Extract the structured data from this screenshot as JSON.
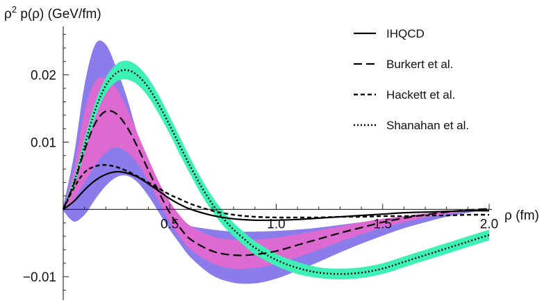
{
  "chart_data": {
    "type": "line",
    "ylabel_main": "ρ",
    "ylabel_sup": "2",
    "ylabel_rest": " p(ρ) (GeV/fm)",
    "xlabel": "ρ (fm)",
    "xlim": [
      0,
      2.0
    ],
    "ylim": [
      -0.0135,
      0.0272
    ],
    "xticks": [
      {
        "value": 0.5,
        "label": "0.5"
      },
      {
        "value": 1.0,
        "label": "1.0"
      },
      {
        "value": 1.5,
        "label": "1.5"
      },
      {
        "value": 2.0,
        "label": "2.0"
      }
    ],
    "yticks": [
      {
        "value": -0.01,
        "label": "−0.01"
      },
      {
        "value": 0.01,
        "label": "0.01"
      },
      {
        "value": 0.02,
        "label": "0.02"
      }
    ],
    "grid": false,
    "legend_position": "top-right",
    "series": [
      {
        "name": "IHQCD",
        "dash": "solid",
        "color": "#000000",
        "x": [
          0.0,
          0.05,
          0.1,
          0.15,
          0.2,
          0.25,
          0.3,
          0.35,
          0.4,
          0.45,
          0.5,
          0.55,
          0.6,
          0.7,
          0.8,
          0.9,
          1.0,
          1.1,
          1.2,
          1.3,
          1.4,
          1.5,
          1.6,
          1.7,
          1.8,
          1.9,
          2.0
        ],
        "y": [
          0.0,
          0.0012,
          0.0029,
          0.0043,
          0.0052,
          0.0056,
          0.0054,
          0.0048,
          0.0038,
          0.0027,
          0.0016,
          0.0007,
          0.0,
          -0.0009,
          -0.0014,
          -0.0016,
          -0.0016,
          -0.0015,
          -0.0013,
          -0.0011,
          -0.0009,
          -0.0007,
          -0.0005,
          -0.0004,
          -0.0003,
          -0.0002,
          -0.0002
        ]
      },
      {
        "name": "Burkert et al.",
        "dash": "long-dash",
        "color": "#000000",
        "x": [
          0.0,
          0.05,
          0.1,
          0.15,
          0.2,
          0.25,
          0.3,
          0.35,
          0.4,
          0.45,
          0.5,
          0.55,
          0.6,
          0.7,
          0.8,
          0.9,
          1.0,
          1.1,
          1.2,
          1.3,
          1.4,
          1.5,
          1.6,
          1.7,
          1.8,
          1.9,
          2.0
        ],
        "y": [
          0.0,
          0.0038,
          0.0088,
          0.0128,
          0.0146,
          0.0142,
          0.0122,
          0.0092,
          0.0058,
          0.0025,
          -0.0005,
          -0.0028,
          -0.0045,
          -0.0062,
          -0.0068,
          -0.0067,
          -0.0062,
          -0.0053,
          -0.0044,
          -0.0035,
          -0.0027,
          -0.0019,
          -0.0013,
          -0.0008,
          -0.0004,
          -0.0001,
          0.0001
        ]
      },
      {
        "name": "Hackett et al.",
        "dash": "short-dash",
        "color": "#000000",
        "x": [
          0.0,
          0.05,
          0.1,
          0.15,
          0.2,
          0.25,
          0.3,
          0.35,
          0.4,
          0.45,
          0.5,
          0.55,
          0.6,
          0.7,
          0.8,
          0.9,
          1.0,
          1.1,
          1.2,
          1.3,
          1.4,
          1.5,
          1.6,
          1.7,
          1.8,
          1.9,
          2.0
        ],
        "y": [
          0.0,
          0.0032,
          0.0055,
          0.0064,
          0.0066,
          0.0063,
          0.0057,
          0.0049,
          0.004,
          0.0031,
          0.0022,
          0.0015,
          0.0008,
          -0.0002,
          -0.0008,
          -0.0011,
          -0.0012,
          -0.0012,
          -0.0012,
          -0.0011,
          -0.0011,
          -0.001,
          -0.001,
          -0.0009,
          -0.0009,
          -0.0008,
          -0.0008
        ]
      },
      {
        "name": "Shanahan et al.",
        "dash": "dotted",
        "color": "#000000",
        "x": [
          0.0,
          0.05,
          0.1,
          0.15,
          0.2,
          0.25,
          0.3,
          0.35,
          0.4,
          0.45,
          0.5,
          0.55,
          0.6,
          0.65,
          0.7,
          0.75,
          0.8,
          0.85,
          0.9,
          1.0,
          1.1,
          1.2,
          1.3,
          1.4,
          1.5,
          1.6,
          1.7,
          1.8,
          1.9,
          2.0
        ],
        "y": [
          0.0,
          0.004,
          0.0095,
          0.0148,
          0.0184,
          0.0203,
          0.0207,
          0.0199,
          0.0181,
          0.0155,
          0.0125,
          0.0093,
          0.0062,
          0.0033,
          0.0008,
          -0.0013,
          -0.003,
          -0.0044,
          -0.0057,
          -0.0075,
          -0.0087,
          -0.0094,
          -0.0096,
          -0.0094,
          -0.0088,
          -0.0078,
          -0.0068,
          -0.0058,
          -0.0048,
          -0.0038
        ]
      }
    ],
    "bands": [
      {
        "name": "Burkert et al. outer band",
        "color": "#8a7ceb",
        "x": [
          0.0,
          0.05,
          0.1,
          0.15,
          0.2,
          0.25,
          0.3,
          0.35,
          0.4,
          0.45,
          0.5,
          0.55,
          0.6,
          0.7,
          0.8,
          0.9,
          1.0,
          1.1,
          1.2,
          1.3,
          1.4,
          1.5,
          1.6,
          1.7,
          1.8,
          1.9,
          2.0
        ],
        "upper": [
          0.0005,
          0.008,
          0.0185,
          0.0245,
          0.0245,
          0.021,
          0.0165,
          0.011,
          0.006,
          0.002,
          -0.0008,
          -0.002,
          -0.0025,
          -0.003,
          -0.0033,
          -0.0033,
          -0.0032,
          -0.003,
          -0.0027,
          -0.0023,
          -0.0019,
          -0.0015,
          -0.0011,
          -0.0007,
          -0.0004,
          -0.0002,
          0.0
        ],
        "lower": [
          -0.0002,
          -0.0018,
          -0.0008,
          0.0015,
          0.0035,
          0.0048,
          0.005,
          0.004,
          0.002,
          -0.0005,
          -0.003,
          -0.0052,
          -0.0072,
          -0.0098,
          -0.0109,
          -0.011,
          -0.0103,
          -0.0091,
          -0.0078,
          -0.0064,
          -0.0051,
          -0.0039,
          -0.0028,
          -0.0019,
          -0.0011,
          -0.0005,
          0.0
        ]
      },
      {
        "name": "Burkert et al. inner band",
        "color": "#dd6ad1",
        "x": [
          0.0,
          0.05,
          0.1,
          0.15,
          0.2,
          0.25,
          0.3,
          0.35,
          0.4,
          0.45,
          0.5,
          0.55,
          0.6,
          0.7,
          0.8,
          0.9,
          1.0,
          1.1,
          1.2,
          1.3,
          1.4,
          1.5,
          1.6,
          1.7,
          1.8,
          1.9,
          2.0
        ],
        "upper": [
          0.0,
          0.006,
          0.0145,
          0.019,
          0.0195,
          0.018,
          0.015,
          0.0112,
          0.0075,
          0.004,
          0.0012,
          -0.001,
          -0.0025,
          -0.004,
          -0.0045,
          -0.0045,
          -0.0042,
          -0.0037,
          -0.0031,
          -0.0025,
          -0.0019,
          -0.0014,
          -0.001,
          -0.0006,
          -0.0003,
          -0.0001,
          0.0001
        ],
        "lower": [
          0.0,
          0.0015,
          0.004,
          0.0065,
          0.0085,
          0.0092,
          0.0085,
          0.0068,
          0.0042,
          0.0012,
          -0.0018,
          -0.0042,
          -0.006,
          -0.008,
          -0.0088,
          -0.0087,
          -0.0081,
          -0.0071,
          -0.006,
          -0.0048,
          -0.0037,
          -0.0027,
          -0.0019,
          -0.0012,
          -0.0007,
          -0.0003,
          0.0
        ]
      },
      {
        "name": "Shanahan et al. band",
        "color": "#3ff0b6",
        "x": [
          0.0,
          0.05,
          0.1,
          0.15,
          0.2,
          0.25,
          0.3,
          0.35,
          0.4,
          0.45,
          0.5,
          0.55,
          0.6,
          0.65,
          0.7,
          0.75,
          0.8,
          0.85,
          0.9,
          1.0,
          1.1,
          1.2,
          1.3,
          1.4,
          1.5,
          1.6,
          1.7,
          1.8,
          1.9,
          2.0
        ],
        "center": [
          0.0,
          0.004,
          0.0095,
          0.0148,
          0.0184,
          0.0203,
          0.0207,
          0.0199,
          0.0181,
          0.0155,
          0.0125,
          0.0093,
          0.0062,
          0.0033,
          0.0008,
          -0.0013,
          -0.003,
          -0.0044,
          -0.0057,
          -0.0075,
          -0.0087,
          -0.0094,
          -0.0096,
          -0.0094,
          -0.0088,
          -0.0078,
          -0.0068,
          -0.0058,
          -0.0048,
          -0.0038
        ],
        "halfwidth": [
          0.0002,
          0.0007,
          0.001,
          0.0011,
          0.0012,
          0.0013,
          0.0014,
          0.0014,
          0.0014,
          0.0014,
          0.0013,
          0.0013,
          0.0012,
          0.0012,
          0.0011,
          0.0011,
          0.001,
          0.001,
          0.001,
          0.0009,
          0.0009,
          0.0008,
          0.0008,
          0.0008,
          0.0008,
          0.0008,
          0.0008,
          0.0008,
          0.0008,
          0.0008
        ]
      }
    ]
  }
}
